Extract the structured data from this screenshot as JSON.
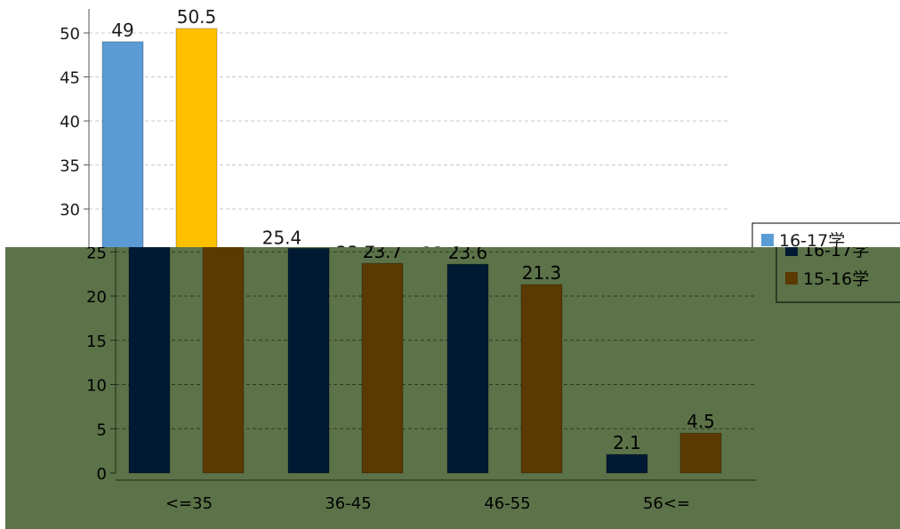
{
  "chart_data": {
    "type": "bar",
    "categories": [
      "<=35",
      "36-45",
      "46-55",
      "56<="
    ],
    "series": [
      {
        "name": "16-17学",
        "values": [
          49,
          25.4,
          23.6,
          2.1
        ]
      },
      {
        "name": "15-16学",
        "values": [
          50.5,
          23.7,
          21.3,
          4.5
        ]
      }
    ],
    "data_labels": [
      [
        "49",
        "25.4",
        "23.6",
        "2.1"
      ],
      [
        "50.5",
        "23.7",
        "21.3",
        "4.5"
      ]
    ],
    "title": "",
    "xlabel": "",
    "ylabel": "",
    "ylim": [
      0,
      50
    ],
    "yticks": [
      0,
      5,
      10,
      15,
      20,
      25,
      30,
      35,
      40,
      45,
      50
    ],
    "grid": true,
    "legend": "right",
    "colors": {
      "series_1_top": "#5b9bd5",
      "series_2_top": "#ffc000",
      "series_1_bottom": "#001a33",
      "series_2_bottom": "#5a3a00",
      "bottom_background": "#5c7349"
    }
  }
}
